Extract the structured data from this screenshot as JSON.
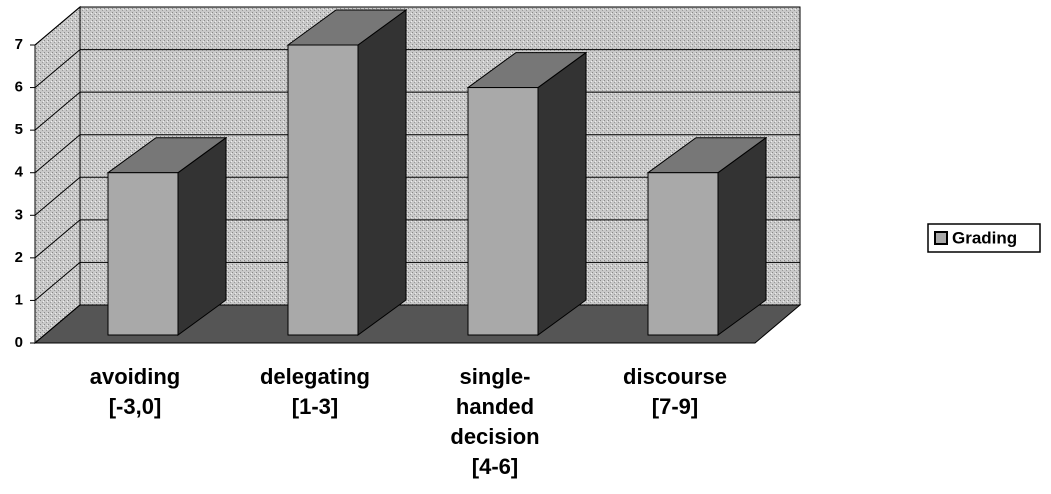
{
  "chart_data": {
    "type": "bar3d",
    "categories": [
      [
        "avoiding",
        "[-3,0]"
      ],
      [
        "delegating",
        "[1-3]"
      ],
      [
        "single-",
        "handed",
        "decision",
        "[4-6]"
      ],
      [
        "discourse",
        "[7-9]"
      ]
    ],
    "series": [
      {
        "name": "Grading",
        "color": "#a9a9a9",
        "values": [
          4,
          7,
          6,
          4
        ]
      }
    ],
    "ylim": [
      0,
      7
    ],
    "yticks": [
      0,
      1,
      2,
      3,
      4,
      5,
      6,
      7
    ],
    "grid": true,
    "legend": "right"
  }
}
